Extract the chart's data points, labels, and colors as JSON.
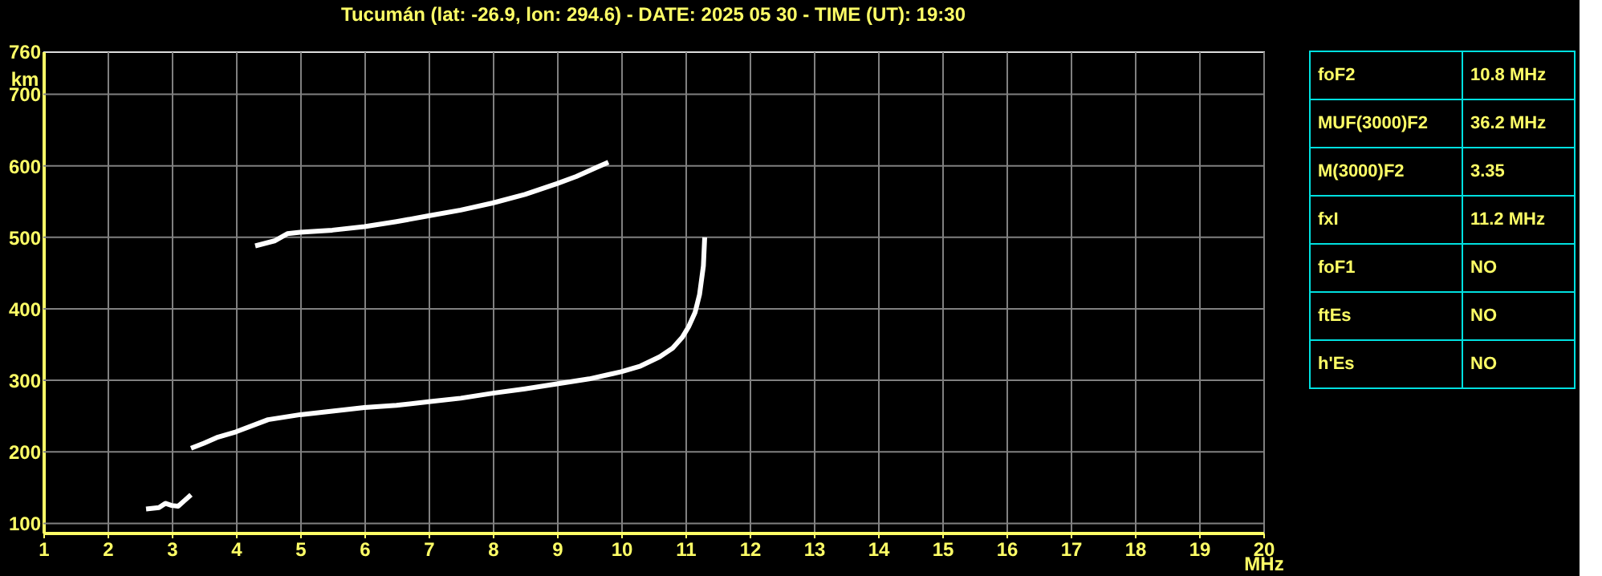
{
  "chart_data": {
    "type": "line",
    "title": "Tucumán (lat: -26.9, lon: 294.6) - DATE: 2025 05 30 - TIME (UT): 19:30",
    "xlabel": "MHz",
    "ylabel": "km",
    "series": [
      {
        "color": "#ffffff",
        "x": [
          2.6,
          2.8,
          2.9,
          3.0,
          3.1,
          3.2,
          3.3
        ],
        "values": [
          120,
          122,
          128,
          125,
          124,
          132,
          140
        ]
      },
      {
        "color": "#ffffff",
        "x": [
          3.3,
          3.5,
          3.7,
          4.0,
          4.5,
          5.0,
          5.5,
          6.0,
          6.5,
          7.0,
          7.5,
          8.0,
          8.5,
          9.0,
          9.5,
          10.0,
          10.3,
          10.6,
          10.8,
          10.95,
          11.05,
          11.15,
          11.22,
          11.28,
          11.3
        ],
        "values": [
          205,
          212,
          220,
          228,
          245,
          252,
          257,
          262,
          265,
          270,
          275,
          282,
          288,
          295,
          302,
          312,
          320,
          333,
          345,
          360,
          375,
          395,
          420,
          460,
          500
        ]
      },
      {
        "color": "#ffffff",
        "x": [
          4.3,
          4.6,
          4.8,
          5.0,
          5.5,
          6.0,
          6.5,
          7.0,
          7.5,
          8.0,
          8.5,
          9.0,
          9.3,
          9.6,
          9.8
        ],
        "values": [
          488,
          495,
          505,
          507,
          510,
          515,
          522,
          530,
          538,
          548,
          560,
          575,
          585,
          597,
          605
        ]
      }
    ],
    "xlim": [
      1,
      20
    ],
    "xticks": [
      1,
      2,
      3,
      4,
      5,
      6,
      7,
      8,
      9,
      10,
      11,
      12,
      13,
      14,
      15,
      16,
      17,
      18,
      19,
      20
    ],
    "ylim": [
      87,
      760
    ],
    "yticks": [
      100,
      200,
      300,
      400,
      500,
      600,
      700,
      760
    ],
    "grid": true,
    "legend": false,
    "marker": "none",
    "line_style": "solid",
    "annotations": [
      "foF2",
      "10.8 MHz",
      "MUF(3000)F2",
      "36.2 MHz",
      "M(3000)F2",
      "3.35",
      "fxI",
      "11.2 MHz",
      "foF1",
      "NO",
      "ftEs",
      "NO",
      "h'Es",
      "NO"
    ]
  }
}
